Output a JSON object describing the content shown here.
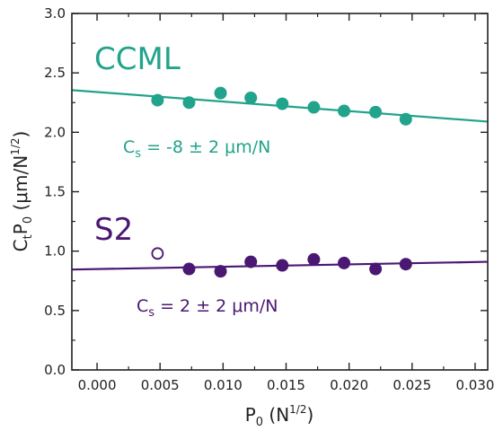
{
  "chart_data": {
    "type": "scatter",
    "xlabel": {
      "main": "P",
      "sub": "0",
      "rest": " (N",
      "sup": "1/2",
      "end": ")"
    },
    "ylabel": {
      "c": "C",
      "csub": "t",
      "p": "P",
      "psub": "0",
      "rest": " (μm/N",
      "sup": "1/2",
      "end": ")"
    },
    "xlim": [
      -0.002,
      0.031
    ],
    "ylim": [
      0.0,
      3.0
    ],
    "xticks": [
      0.0,
      0.005,
      0.01,
      0.015,
      0.02,
      0.025,
      0.03
    ],
    "xtick_labels": [
      "0.000",
      "0.005",
      "0.010",
      "0.015",
      "0.020",
      "0.025",
      "0.030"
    ],
    "yticks": [
      0.0,
      0.5,
      1.0,
      1.5,
      2.0,
      2.5,
      3.0
    ],
    "ytick_labels": [
      "0.0",
      "0.5",
      "1.0",
      "1.5",
      "2.0",
      "2.5",
      "3.0"
    ],
    "grid": false,
    "series": [
      {
        "name": "CCML",
        "color": "#22a38b",
        "marker": "filled-circle",
        "points": [
          [
            0.0048,
            2.27
          ],
          [
            0.0073,
            2.25
          ],
          [
            0.0098,
            2.33
          ],
          [
            0.0122,
            2.29
          ],
          [
            0.0147,
            2.24
          ],
          [
            0.0172,
            2.21
          ],
          [
            0.0196,
            2.18
          ],
          [
            0.0221,
            2.17
          ],
          [
            0.0245,
            2.11
          ]
        ],
        "fit": {
          "x0": -0.002,
          "y0": 2.355,
          "x1": 0.031,
          "y1": 2.09
        },
        "annotation": {
          "c": "C",
          "sub": "s",
          "text": " = -8 ± 2 μm/N"
        }
      },
      {
        "name": "S2",
        "color": "#4a1772",
        "marker": "filled-circle",
        "points": [
          [
            0.0073,
            0.85
          ],
          [
            0.0098,
            0.83
          ],
          [
            0.0122,
            0.91
          ],
          [
            0.0147,
            0.88
          ],
          [
            0.0172,
            0.93
          ],
          [
            0.0196,
            0.9
          ],
          [
            0.0221,
            0.85
          ],
          [
            0.0245,
            0.89
          ]
        ],
        "open_points": [
          [
            0.0048,
            0.98
          ]
        ],
        "fit": {
          "x0": -0.002,
          "y0": 0.845,
          "x1": 0.031,
          "y1": 0.91
        },
        "annotation": {
          "c": "C",
          "sub": "s",
          "text": " = 2 ± 2 μm/N"
        }
      }
    ]
  }
}
